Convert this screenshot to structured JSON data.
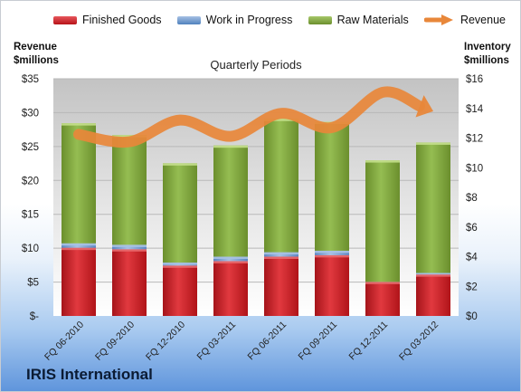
{
  "chart_data": {
    "type": "bar",
    "title": "Quarterly Periods",
    "categories": [
      "FQ 06-2010",
      "FQ 09-2010",
      "FQ 12-2010",
      "FQ 03-2011",
      "FQ 06-2011",
      "FQ 09-2011",
      "FQ 12-2011",
      "FQ 03-2012"
    ],
    "stacked": true,
    "series": [
      {
        "name": "Finished Goods",
        "axis": "right",
        "color": "#c8161d",
        "values": [
          4.6,
          4.5,
          3.4,
          3.7,
          4.0,
          4.1,
          2.3,
          2.8
        ]
      },
      {
        "name": "Work in Progress",
        "axis": "right",
        "color": "#4f81bd",
        "values": [
          0.3,
          0.3,
          0.2,
          0.3,
          0.3,
          0.3,
          0.0,
          0.1
        ]
      },
      {
        "name": "Raw Materials",
        "axis": "right",
        "color": "#77a033",
        "values": [
          8.1,
          7.4,
          6.7,
          7.5,
          9.0,
          8.7,
          8.2,
          8.8
        ]
      },
      {
        "name": "Revenue",
        "axis": "left",
        "type": "line",
        "color": "#e8873a",
        "values": [
          26.8,
          25.7,
          28.9,
          26.5,
          29.9,
          27.8,
          33.0,
          30.2
        ]
      }
    ],
    "left_axis": {
      "label_line1": "Revenue",
      "label_line2": "$millions",
      "ylim": [
        0,
        35
      ],
      "ticks": [
        "$-",
        "$5",
        "$10",
        "$15",
        "$20",
        "$25",
        "$30",
        "$35"
      ]
    },
    "right_axis": {
      "label_line1": "Inventory",
      "label_line2": "$millions",
      "ylim": [
        0,
        16
      ],
      "ticks": [
        "$0",
        "$2",
        "$4",
        "$6",
        "$8",
        "$10",
        "$12",
        "$14",
        "$16"
      ]
    },
    "grid": true,
    "legend": "top"
  },
  "company": "IRIS International"
}
